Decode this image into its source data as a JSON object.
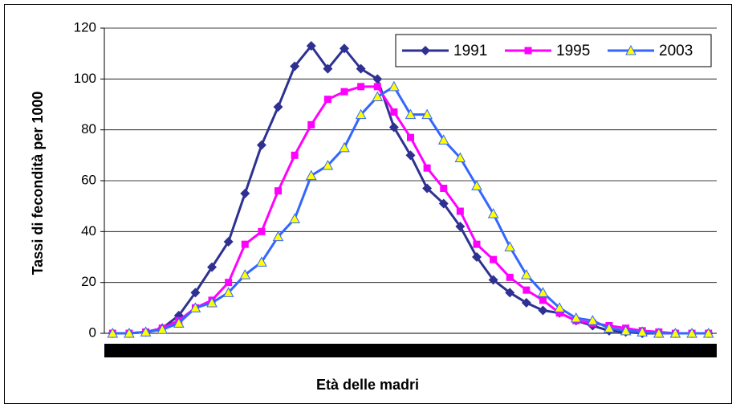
{
  "chart_data": {
    "type": "line",
    "x_label": "Età delle madri",
    "y_label": "Tassi di fecondità per 1000",
    "categories": [
      null,
      null,
      null,
      null,
      null,
      null,
      null,
      null,
      null,
      null,
      null,
      null,
      null,
      null,
      null,
      null,
      null,
      null,
      null,
      null,
      null,
      null,
      null,
      null,
      null,
      null,
      null,
      null,
      null,
      null,
      null,
      null,
      null,
      null,
      null,
      null,
      null
    ],
    "ylim": [
      0,
      120
    ],
    "yticks": [
      0,
      20,
      40,
      60,
      80,
      100,
      120
    ],
    "grid": true,
    "legend": "top-right",
    "series": [
      {
        "name": "1991",
        "color": "#2e3192",
        "marker": "diamond",
        "values": [
          0,
          0,
          0.5,
          2,
          7,
          16,
          26,
          36,
          55,
          74,
          89,
          105,
          113,
          104,
          112,
          104,
          100,
          81,
          70,
          57,
          51,
          42,
          30,
          21,
          16,
          12,
          9,
          8,
          5,
          3,
          1,
          0.5,
          0,
          0,
          0,
          0,
          0
        ]
      },
      {
        "name": "1995",
        "color": "#ff00ff",
        "marker": "square",
        "values": [
          0,
          0,
          0.5,
          2,
          5,
          10,
          13,
          20,
          35,
          40,
          56,
          70,
          82,
          92,
          95,
          97,
          97,
          87,
          77,
          65,
          57,
          48,
          35,
          29,
          22,
          17,
          13,
          8,
          5,
          4,
          3,
          2,
          1,
          0.5,
          0,
          0,
          0
        ]
      },
      {
        "name": "2003",
        "color": "#3366ff",
        "marker": "triangle",
        "values": [
          0,
          0,
          0.5,
          1.5,
          4,
          10,
          12,
          16,
          23,
          28,
          38,
          45,
          62,
          66,
          73,
          86,
          93,
          97,
          86,
          86,
          76,
          69,
          58,
          47,
          34,
          23,
          16,
          10,
          6,
          5,
          2,
          1,
          0.5,
          0,
          0,
          0,
          0
        ]
      }
    ]
  }
}
